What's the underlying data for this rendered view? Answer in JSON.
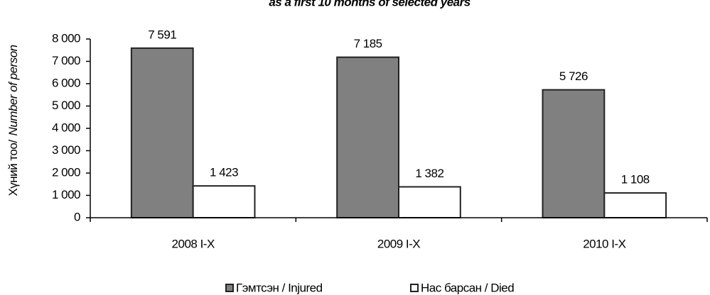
{
  "chart_data": {
    "type": "bar",
    "title": "as a first 10 months of selected years",
    "ylabel": [
      "Хүний тоо/",
      "Number of person"
    ],
    "categories": [
      "2008 I-X",
      "2009 I-X",
      "2010 I-X"
    ],
    "series": [
      {
        "name": "Гэмтсэн / Injured",
        "color": "#808080",
        "values": [
          7591,
          7185,
          5726
        ],
        "value_labels": [
          "7 591",
          "7 185",
          "5 726"
        ]
      },
      {
        "name": "Нас барсан / Died",
        "color": "#ffffff",
        "values": [
          1423,
          1382,
          1108
        ],
        "value_labels": [
          "1 423",
          "1 382",
          "1 108"
        ]
      }
    ],
    "ylim": [
      0,
      8000
    ],
    "yticks": [
      0,
      {
        "value": 1000,
        "label": "1 000"
      },
      {
        "value": 2000,
        "label": "2 000"
      },
      {
        "value": 3000,
        "label": "3 000"
      },
      {
        "value": 4000,
        "label": "4 000"
      },
      {
        "value": 5000,
        "label": "5 000"
      },
      {
        "value": 6000,
        "label": "6 000"
      },
      {
        "value": 7000,
        "label": "7 000"
      },
      {
        "value": 8000,
        "label": "8 000"
      }
    ],
    "grid": false
  }
}
